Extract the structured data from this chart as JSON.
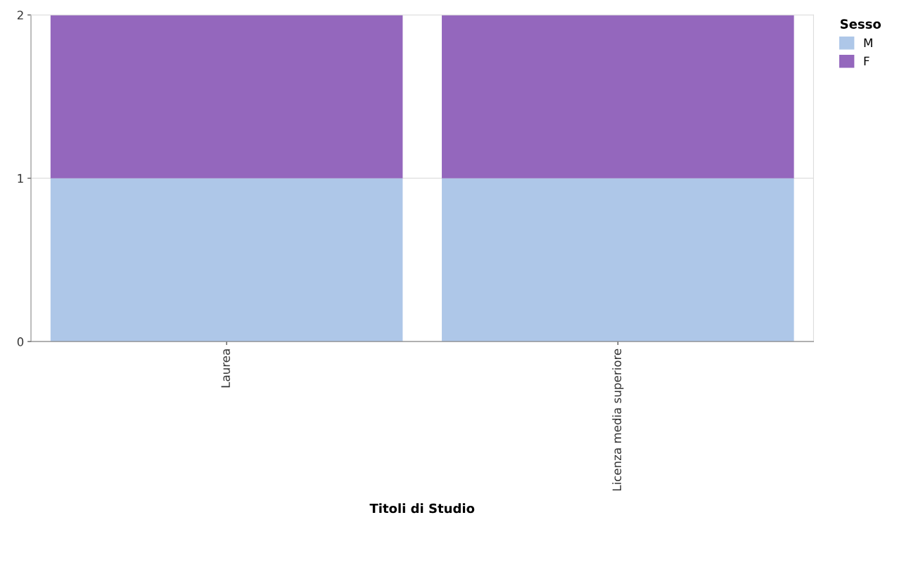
{
  "chart_data": {
    "type": "bar",
    "stacked": true,
    "categories": [
      "Laurea",
      "Licenza media superiore"
    ],
    "series": [
      {
        "name": "M",
        "color": "#aec7e8",
        "values": [
          1,
          1
        ]
      },
      {
        "name": "F",
        "color": "#9467bd",
        "values": [
          1,
          1
        ]
      }
    ],
    "xlabel": "Titoli di Studio",
    "legend_title": "Sesso",
    "legend": "top right",
    "ylim": [
      0,
      2
    ],
    "yticks": [
      0,
      1,
      2
    ],
    "grid": "y"
  }
}
